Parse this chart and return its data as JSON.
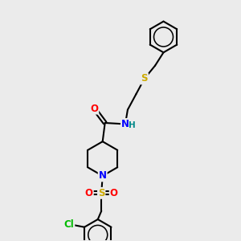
{
  "bg_color": "#ebebeb",
  "atom_colors": {
    "C": "#000000",
    "N": "#0000ff",
    "O": "#ff0000",
    "S": "#ccaa00",
    "Cl": "#00bb00",
    "H": "#008888"
  },
  "bond_color": "#000000",
  "bond_width": 1.5,
  "font_size": 8.5,
  "ring_r": 0.65,
  "pip_r": 0.72
}
